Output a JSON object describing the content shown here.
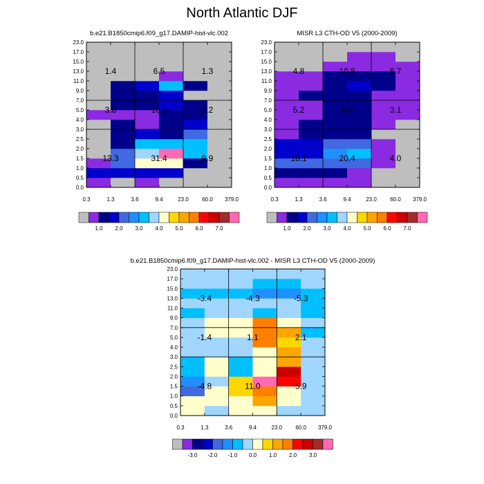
{
  "title": "North Atlantic DJF",
  "colors": {
    "background": "#ffffff",
    "missing": "#bebebe",
    "grid_line": "#000000",
    "abs_scale": [
      "#bebebe",
      "#8a2be2",
      "#00008b",
      "#0000cd",
      "#4169e1",
      "#1e90ff",
      "#00bfff",
      "#a0d6ff",
      "#ffffcc",
      "#ffd700",
      "#ffa500",
      "#ff7f00",
      "#ff0000",
      "#cd0000",
      "#a52a2a",
      "#ff69b4"
    ],
    "diff_scale": [
      "#bebebe",
      "#8a2be2",
      "#00008b",
      "#0000cd",
      "#4169e1",
      "#1e90ff",
      "#00bfff",
      "#a0d6ff",
      "#ffffcc",
      "#ffd700",
      "#ffa500",
      "#ff7f00",
      "#ff0000",
      "#cd0000",
      "#a52a2a",
      "#ff69b4"
    ]
  },
  "chart_data": [
    {
      "type": "heatmap",
      "title": "b.e21.B1850cmip6.f09_g17.DAMIP-hist-vlc.002",
      "x_edges": [
        "0.3",
        "1.3",
        "3.6",
        "9.4",
        "23.0",
        "60.0",
        "379.0"
      ],
      "y_edges": [
        "0.0",
        "0.5",
        "1.0",
        "1.5",
        "2.0",
        "2.5",
        "3.0",
        "4.0",
        "5.0",
        "7.0",
        "9.0",
        "11.0",
        "13.0",
        "15.0",
        "17.0",
        "23.0"
      ],
      "divider_x": [
        2,
        4
      ],
      "divider_y": [
        6,
        9
      ],
      "colorbar_labels": [
        "1.0",
        "2.0",
        "3.0",
        "4.0",
        "5.0",
        "6.0",
        "7.0"
      ],
      "grid": [
        [
          1,
          0,
          1,
          0,
          0,
          0
        ],
        [
          3,
          3,
          3,
          3,
          0,
          0
        ],
        [
          1,
          4,
          8,
          8,
          2,
          0
        ],
        [
          0,
          4,
          7,
          15,
          6,
          0
        ],
        [
          0,
          2,
          6,
          6,
          6,
          0
        ],
        [
          0,
          2,
          3,
          2,
          4,
          0
        ],
        [
          0,
          2,
          1,
          2,
          3,
          0
        ],
        [
          1,
          1,
          1,
          2,
          2,
          0
        ],
        [
          0,
          2,
          2,
          3,
          2,
          0
        ],
        [
          0,
          2,
          2,
          3,
          0,
          0
        ],
        [
          0,
          2,
          3,
          6,
          2,
          0
        ],
        [
          0,
          0,
          0,
          1,
          0,
          0
        ],
        [
          0,
          0,
          0,
          0,
          0,
          0
        ],
        [
          0,
          0,
          0,
          0,
          0,
          0
        ],
        [
          0,
          0,
          0,
          0,
          0,
          0
        ]
      ],
      "annotations": [
        {
          "text": "1.4",
          "x": "1.3",
          "y": "13.0"
        },
        {
          "text": "6.5",
          "x": "9.4",
          "y": "13.0"
        },
        {
          "text": "1.3",
          "x": "60.0",
          "y": "13.0"
        },
        {
          "text": "3.8",
          "x": "1.3",
          "y": "5.0"
        },
        {
          "text": "10.6",
          "x": "9.4",
          "y": "5.0"
        },
        {
          "text": "5.2",
          "x": "60.0",
          "y": "5.0"
        },
        {
          "text": "13.3",
          "x": "1.3",
          "y": "1.5"
        },
        {
          "text": "31.4",
          "x": "9.4",
          "y": "1.5"
        },
        {
          "text": "9.9",
          "x": "60.0",
          "y": "1.5"
        }
      ]
    },
    {
      "type": "heatmap",
      "title": "MISR L3 CTH-OD V5 (2000-2009)",
      "x_edges": [
        "0.3",
        "1.3",
        "3.6",
        "9.4",
        "23.0",
        "60.0",
        "379.0"
      ],
      "y_edges": [
        "0.0",
        "0.5",
        "1.0",
        "1.5",
        "2.0",
        "2.5",
        "3.0",
        "4.0",
        "5.0",
        "7.0",
        "9.0",
        "11.0",
        "13.0",
        "15.0",
        "17.0",
        "23.0"
      ],
      "divider_x": [
        2,
        4
      ],
      "divider_y": [
        6,
        9
      ],
      "colorbar_labels": [
        "1.0",
        "2.0",
        "3.0",
        "4.0",
        "5.0",
        "6.0",
        "7.0"
      ],
      "grid": [
        [
          1,
          1,
          1,
          1,
          0,
          0
        ],
        [
          2,
          2,
          2,
          1,
          0,
          0
        ],
        [
          4,
          4,
          4,
          4,
          1,
          0
        ],
        [
          3,
          3,
          5,
          6,
          1,
          0
        ],
        [
          3,
          3,
          4,
          4,
          1,
          0
        ],
        [
          1,
          2,
          2,
          2,
          0,
          0
        ],
        [
          1,
          2,
          2,
          2,
          1,
          0
        ],
        [
          1,
          1,
          2,
          2,
          1,
          1
        ],
        [
          1,
          1,
          2,
          2,
          1,
          1
        ],
        [
          1,
          2,
          2,
          2,
          1,
          1
        ],
        [
          1,
          1,
          2,
          3,
          2,
          1
        ],
        [
          1,
          1,
          2,
          2,
          2,
          1
        ],
        [
          0,
          0,
          1,
          1,
          1,
          1
        ],
        [
          0,
          0,
          0,
          1,
          1,
          0
        ],
        [
          0,
          0,
          0,
          0,
          0,
          0
        ]
      ],
      "annotations": [
        {
          "text": "4.8",
          "x": "1.3",
          "y": "13.0"
        },
        {
          "text": "10.8",
          "x": "9.4",
          "y": "13.0"
        },
        {
          "text": "6.7",
          "x": "60.0",
          "y": "13.0"
        },
        {
          "text": "5.2",
          "x": "1.3",
          "y": "5.0"
        },
        {
          "text": "9.6",
          "x": "9.4",
          "y": "5.0"
        },
        {
          "text": "3.1",
          "x": "60.0",
          "y": "5.0"
        },
        {
          "text": "18.1",
          "x": "1.3",
          "y": "1.5"
        },
        {
          "text": "20.4",
          "x": "9.4",
          "y": "1.5"
        },
        {
          "text": "4.0",
          "x": "60.0",
          "y": "1.5"
        }
      ]
    },
    {
      "type": "heatmap",
      "title": "b.e21.B1850cmip6.f09_g17.DAMIP-hist-vlc.002 - MISR L3 CTH-OD V5 (2000-2009)",
      "x_edges": [
        "0.3",
        "1.3",
        "3.6",
        "9.4",
        "23.0",
        "60.0",
        "379.0"
      ],
      "y_edges": [
        "0.0",
        "0.5",
        "1.0",
        "1.5",
        "2.0",
        "2.5",
        "3.0",
        "4.0",
        "5.0",
        "7.0",
        "9.0",
        "11.0",
        "13.0",
        "15.0",
        "17.0",
        "23.0"
      ],
      "divider_x": [
        2,
        4
      ],
      "divider_y": [
        6,
        9
      ],
      "colorbar_labels": [
        "-3.0",
        "-2.0",
        "-1.0",
        "0.0",
        "1.0",
        "2.0",
        "3.0"
      ],
      "grid": [
        [
          8,
          7,
          8,
          8,
          7,
          7
        ],
        [
          8,
          8,
          8,
          10,
          8,
          7
        ],
        [
          4,
          8,
          9,
          11,
          8,
          7
        ],
        [
          5,
          7,
          9,
          15,
          12,
          7
        ],
        [
          6,
          8,
          6,
          8,
          13,
          7
        ],
        [
          6,
          8,
          6,
          8,
          10,
          7
        ],
        [
          7,
          7,
          7,
          8,
          10,
          7
        ],
        [
          7,
          7,
          7,
          11,
          9,
          7
        ],
        [
          7,
          8,
          8,
          11,
          10,
          6
        ],
        [
          7,
          8,
          8,
          11,
          8,
          7
        ],
        [
          6,
          7,
          7,
          6,
          7,
          6
        ],
        [
          7,
          7,
          7,
          7,
          7,
          6
        ],
        [
          6,
          6,
          6,
          5,
          5,
          6
        ],
        [
          7,
          7,
          7,
          6,
          6,
          7
        ],
        [
          7,
          7,
          7,
          7,
          7,
          7
        ]
      ],
      "annotations": [
        {
          "text": "-3.4",
          "x": "1.3",
          "y": "13.0"
        },
        {
          "text": "-4.3",
          "x": "9.4",
          "y": "13.0"
        },
        {
          "text": "-5.3",
          "x": "60.0",
          "y": "13.0"
        },
        {
          "text": "-1.4",
          "x": "1.3",
          "y": "5.0"
        },
        {
          "text": "1.1",
          "x": "9.4",
          "y": "5.0"
        },
        {
          "text": "2.1",
          "x": "60.0",
          "y": "5.0"
        },
        {
          "text": "-4.8",
          "x": "1.3",
          "y": "1.5"
        },
        {
          "text": "11.0",
          "x": "9.4",
          "y": "1.5"
        },
        {
          "text": "5.9",
          "x": "60.0",
          "y": "1.5"
        }
      ]
    }
  ]
}
